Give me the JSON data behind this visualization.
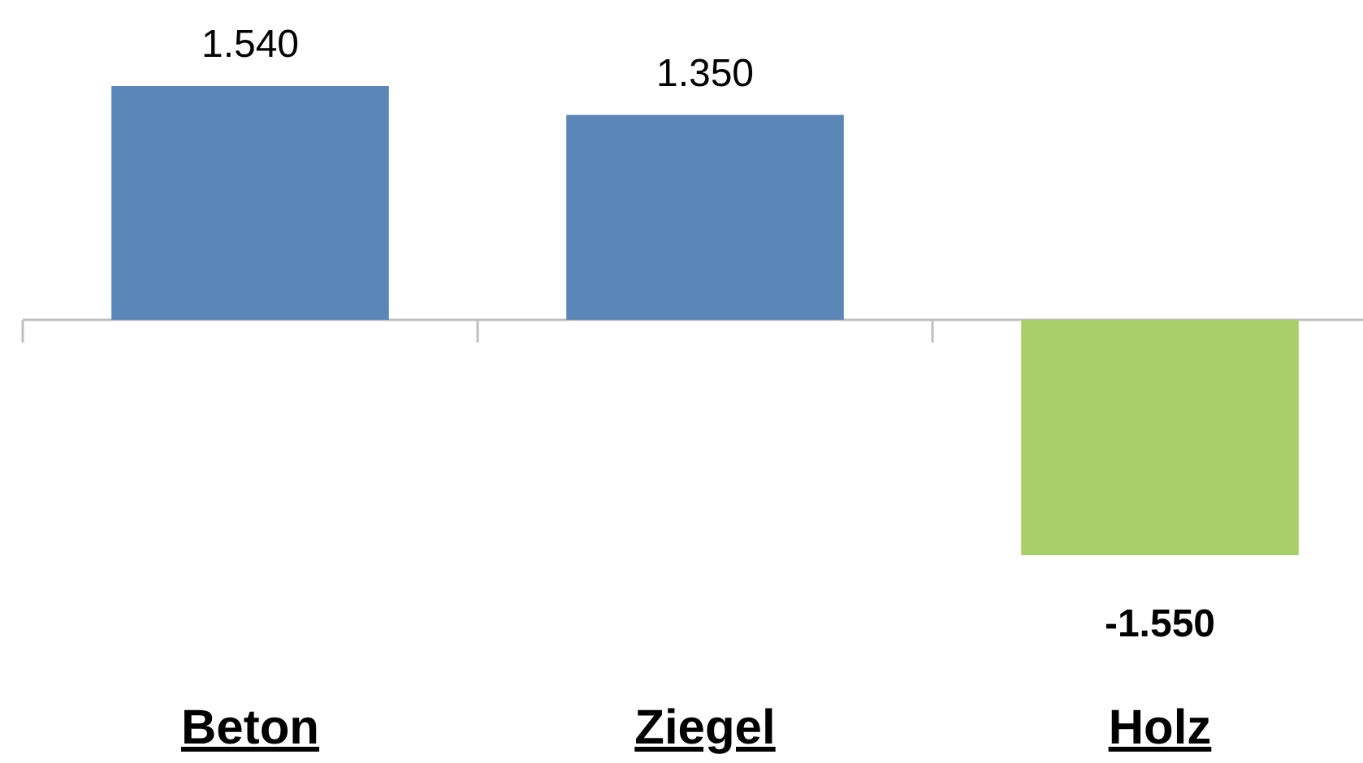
{
  "chart_data": {
    "type": "bar",
    "categories": [
      "Beton",
      "Ziegel",
      "Holz"
    ],
    "values": [
      1540,
      1350,
      -1550
    ],
    "colors": [
      "#5b87b8",
      "#5b87b8",
      "#a8d06a"
    ],
    "value_labels": [
      "1.540",
      "1.350",
      "-1.550"
    ]
  }
}
